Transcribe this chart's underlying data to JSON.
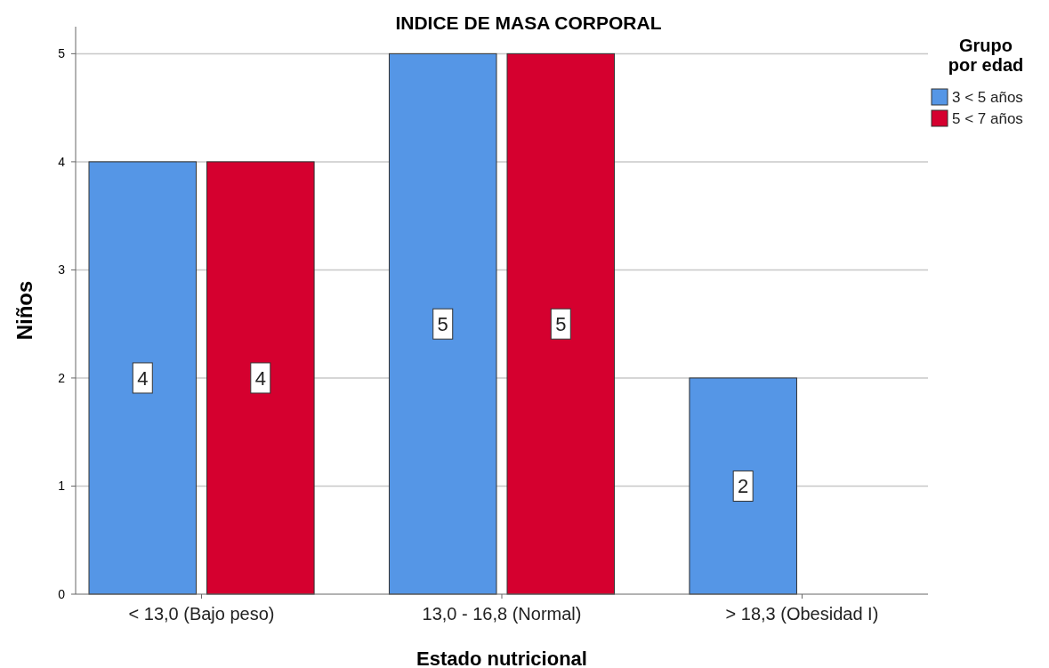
{
  "chart_data": {
    "type": "bar",
    "title": "INDICE DE MASA CORPORAL",
    "xlabel": "Estado nutricional",
    "ylabel": "Niños",
    "legend_title": "Grupo por edad",
    "categories": [
      "< 13,0 (Bajo peso)",
      "13,0 - 16,8 (Normal)",
      "> 18,3 (Obesidad I)"
    ],
    "series": [
      {
        "name": "3 < 5 años",
        "color": "#5596e6",
        "values": [
          4,
          5,
          2
        ]
      },
      {
        "name": "5 < 7 años",
        "color": "#d5002f",
        "values": [
          4,
          5,
          null
        ]
      }
    ],
    "ylim": [
      0,
      5.25
    ],
    "yticks": [
      0,
      1,
      2,
      3,
      4,
      5
    ],
    "grid": "y",
    "legend": "top right",
    "data_labels": true
  }
}
